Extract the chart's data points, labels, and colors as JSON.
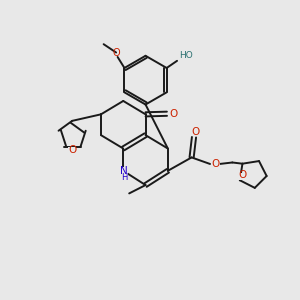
{
  "bg_color": "#e8e8e8",
  "bond_color": "#1a1a1a",
  "o_color": "#cc2200",
  "n_color": "#2200cc",
  "ho_color": "#2a7070",
  "figsize": [
    3.0,
    3.0
  ],
  "dpi": 100,
  "xlim": [
    0,
    10
  ],
  "ylim": [
    0,
    10
  ]
}
